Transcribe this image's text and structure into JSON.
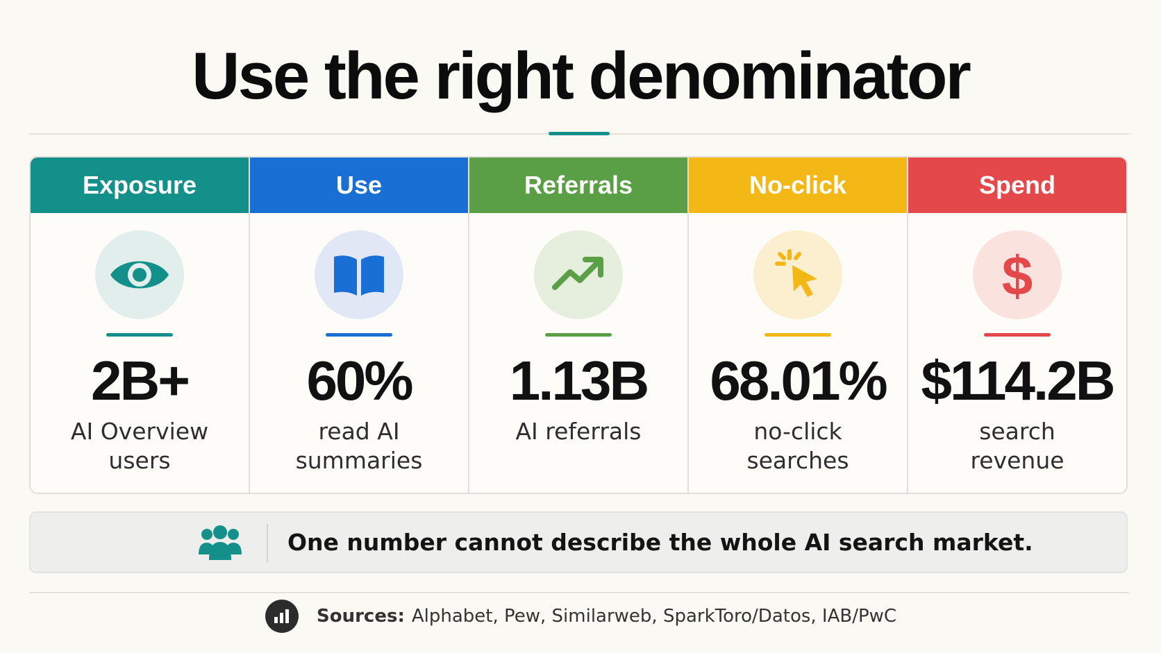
{
  "title": "Use the right denominator",
  "cards": [
    {
      "category": "Exposure",
      "value": "2B+",
      "label": "AI Overview users",
      "icon": "eye-icon",
      "color": "#14908b",
      "icon_bg": "#e2eeeb"
    },
    {
      "category": "Use",
      "value": "60%",
      "label": "read AI summaries",
      "icon": "book-icon",
      "color": "#1a6fd4",
      "icon_bg": "#e0e8f6"
    },
    {
      "category": "Referrals",
      "value": "1.13B",
      "label": "AI referrals",
      "icon": "trend-up-icon",
      "color": "#5a9f45",
      "icon_bg": "#e6efde"
    },
    {
      "category": "No-click",
      "value": "68.01%",
      "label": "no-click searches",
      "icon": "cursor-click-icon",
      "color": "#f4b816",
      "icon_bg": "#fcefd0"
    },
    {
      "category": "Spend",
      "value": "$114.2B",
      "label": "search revenue",
      "icon": "dollar-icon",
      "color": "#e5484a",
      "icon_bg": "#fae3df"
    }
  ],
  "callout": {
    "icon": "people-group-icon",
    "text": "One number cannot describe the whole AI search market."
  },
  "sources": {
    "icon": "bar-chart-icon",
    "label": "Sources:",
    "list": "Alphabet, Pew, Similarweb, SparkToro/Datos, IAB/PwC"
  }
}
